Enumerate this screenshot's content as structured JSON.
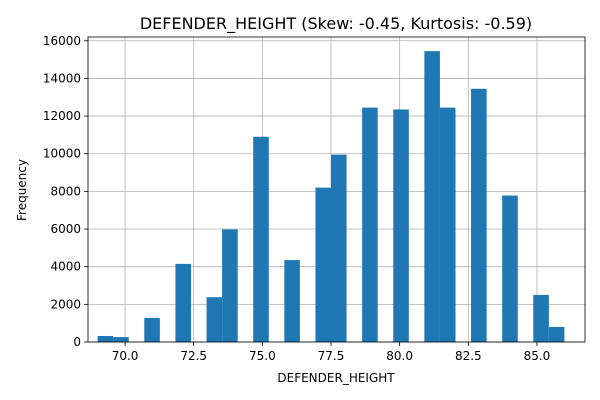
{
  "chart_data": {
    "type": "bar",
    "title": "DEFENDER_HEIGHT (Skew: -0.45, Kurtosis: -0.59)",
    "xlabel": "DEFENDER_HEIGHT",
    "ylabel": "Frequency",
    "xlim": [
      68.65,
      86.75
    ],
    "ylim": [
      0,
      16200
    ],
    "grid": true,
    "bar_color": "#1f77b4",
    "bin_width": 0.567,
    "x_ticks": [
      70.0,
      72.5,
      75.0,
      77.5,
      80.0,
      82.5,
      85.0
    ],
    "x_tick_labels": [
      "70.0",
      "72.5",
      "75.0",
      "77.5",
      "80.0",
      "82.5",
      "85.0"
    ],
    "y_ticks": [
      0,
      2000,
      4000,
      6000,
      8000,
      10000,
      12000,
      14000,
      16000
    ],
    "y_tick_labels": [
      "0",
      "2000",
      "4000",
      "6000",
      "8000",
      "10000",
      "12000",
      "14000",
      "16000"
    ],
    "bins": [
      {
        "x0": 69.0,
        "value": 320
      },
      {
        "x0": 69.567,
        "value": 260
      },
      {
        "x0": 70.7,
        "value": 1280
      },
      {
        "x0": 71.834,
        "value": 4150
      },
      {
        "x0": 72.967,
        "value": 2380
      },
      {
        "x0": 73.534,
        "value": 5980
      },
      {
        "x0": 74.667,
        "value": 10900
      },
      {
        "x0": 75.8,
        "value": 4350
      },
      {
        "x0": 76.934,
        "value": 8200
      },
      {
        "x0": 77.5,
        "value": 9950
      },
      {
        "x0": 78.634,
        "value": 12450
      },
      {
        "x0": 79.767,
        "value": 12350
      },
      {
        "x0": 80.9,
        "value": 15450
      },
      {
        "x0": 81.467,
        "value": 12450
      },
      {
        "x0": 82.6,
        "value": 13450
      },
      {
        "x0": 83.734,
        "value": 7780
      },
      {
        "x0": 84.867,
        "value": 2500
      },
      {
        "x0": 85.434,
        "value": 800
      }
    ]
  }
}
